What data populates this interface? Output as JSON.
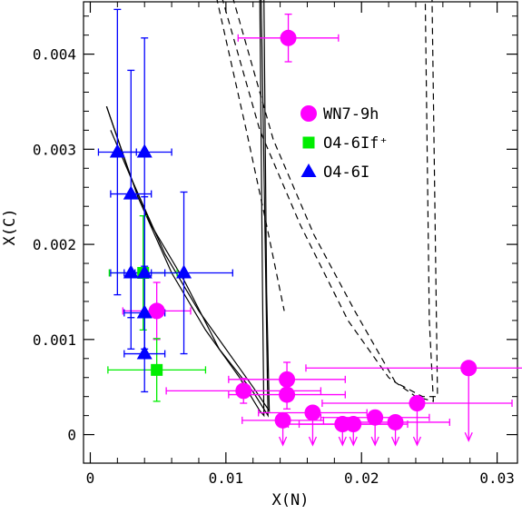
{
  "chart_data": {
    "type": "scatter",
    "title": "",
    "xlabel": "X(N)",
    "ylabel": "X(C)",
    "xlim": [
      -0.0005,
      0.0315
    ],
    "ylim": [
      -0.0003,
      0.00455
    ],
    "x_ticks": [
      0,
      0.01,
      0.02,
      0.03
    ],
    "x_tick_labels": [
      "0",
      "0.01",
      "0.02",
      "0.03"
    ],
    "y_ticks": [
      0,
      0.001,
      0.002,
      0.003,
      0.004
    ],
    "y_tick_labels": [
      "0",
      "0.001",
      "0.002",
      "0.003",
      "0.004"
    ],
    "grid": false,
    "legend_position": "upper-right",
    "series": [
      {
        "name": "WN7-9h",
        "marker": "circle",
        "color": "#ff00ff",
        "points": [
          {
            "x": 0.0146,
            "y": 0.00417,
            "xerr": 0.0037,
            "yerr": 0.00025
          },
          {
            "x": 0.0049,
            "y": 0.0013,
            "xerr": 0.0025,
            "yerr": 0.0003
          },
          {
            "x": 0.0113,
            "y": 0.00046,
            "xerr": 0.0057,
            "yerr": 0.00013
          },
          {
            "x": 0.0145,
            "y": 0.00058,
            "xerr": 0.0043,
            "yerr": 0.00018
          },
          {
            "x": 0.0145,
            "y": 0.00042,
            "xerr": 0.0043,
            "yerr": 0.00015
          },
          {
            "x": 0.0142,
            "y": 0.00015,
            "xerr": 0.003,
            "yerr": 0.0,
            "upper_limit": true
          },
          {
            "x": 0.0164,
            "y": 0.00023,
            "xerr": 0.004,
            "yerr": 0.0,
            "upper_limit": true
          },
          {
            "x": 0.0186,
            "y": 0.00011,
            "xerr": 0.004,
            "yerr": 0.0,
            "upper_limit": true
          },
          {
            "x": 0.0194,
            "y": 0.00011,
            "xerr": 0.004,
            "yerr": 0.0,
            "upper_limit": true
          },
          {
            "x": 0.021,
            "y": 0.00018,
            "xerr": 0.004,
            "yerr": 0.0,
            "upper_limit": true
          },
          {
            "x": 0.0225,
            "y": 0.00013,
            "xerr": 0.004,
            "yerr": 0.0,
            "upper_limit": true
          },
          {
            "x": 0.0241,
            "y": 0.00033,
            "xerr": 0.007,
            "yerr": 0.0,
            "upper_limit": true
          },
          {
            "x": 0.0279,
            "y": 0.0007,
            "xerr": 0.012,
            "yerr": 0.0,
            "upper_limit": true
          }
        ]
      },
      {
        "name": "O4-6If⁺",
        "marker": "square",
        "color": "#00ee00",
        "points": [
          {
            "x": 0.0039,
            "y": 0.0017,
            "xerr": 0.0025,
            "yerr": 0.0006
          },
          {
            "x": 0.0049,
            "y": 0.00068,
            "xerr": 0.0036,
            "yerr": 0.00033
          }
        ]
      },
      {
        "name": "O4-6I",
        "marker": "triangle",
        "color": "#0000ff",
        "points": [
          {
            "x": 0.002,
            "y": 0.00297,
            "xerr": 0.0014,
            "yerr": 0.0015
          },
          {
            "x": 0.004,
            "y": 0.00297,
            "xerr": 0.002,
            "yerr": 0.0012
          },
          {
            "x": 0.003,
            "y": 0.00253,
            "xerr": 0.0015,
            "yerr": 0.0013
          },
          {
            "x": 0.003,
            "y": 0.0017,
            "xerr": 0.0015,
            "yerr": 0.0008
          },
          {
            "x": 0.004,
            "y": 0.0017,
            "xerr": 0.0015,
            "yerr": 0.0008
          },
          {
            "x": 0.0069,
            "y": 0.0017,
            "xerr": 0.0036,
            "yerr": 0.00085
          },
          {
            "x": 0.004,
            "y": 0.00128,
            "xerr": 0.0015,
            "yerr": 0.00045
          },
          {
            "x": 0.004,
            "y": 0.00085,
            "xerr": 0.0015,
            "yerr": 0.0004
          }
        ]
      }
    ],
    "tracks": [
      {
        "style": "solid",
        "points": [
          [
            0.0012,
            0.00345
          ],
          [
            0.0035,
            0.0025
          ],
          [
            0.006,
            0.0017
          ],
          [
            0.0085,
            0.0011
          ],
          [
            0.011,
            0.0006
          ],
          [
            0.0125,
            0.00025
          ],
          [
            0.0128,
            0.0002
          ],
          [
            0.0127,
            0.0015
          ],
          [
            0.0125,
            0.0046
          ]
        ]
      },
      {
        "style": "solid",
        "points": [
          [
            0.0012,
            0.00345
          ],
          [
            0.003,
            0.0027
          ],
          [
            0.0055,
            0.0019
          ],
          [
            0.008,
            0.0013
          ],
          [
            0.0105,
            0.0008
          ],
          [
            0.012,
            0.0005
          ],
          [
            0.0132,
            0.00025
          ],
          [
            0.013,
            0.0015
          ],
          [
            0.0128,
            0.0046
          ]
        ]
      },
      {
        "style": "solid",
        "points": [
          [
            0.0015,
            0.0032
          ],
          [
            0.0045,
            0.0022
          ],
          [
            0.007,
            0.0016
          ],
          [
            0.0095,
            0.0009
          ],
          [
            0.012,
            0.00045
          ],
          [
            0.0131,
            0.0002
          ],
          [
            0.0126,
            0.0046
          ]
        ]
      },
      {
        "style": "dashed",
        "points": [
          [
            0.0093,
            0.0046
          ],
          [
            0.0115,
            0.0032
          ],
          [
            0.013,
            0.0022
          ],
          [
            0.0143,
            0.0013
          ]
        ]
      },
      {
        "style": "dashed",
        "points": [
          [
            0.0097,
            0.0046
          ],
          [
            0.0125,
            0.0032
          ],
          [
            0.0155,
            0.0022
          ],
          [
            0.019,
            0.0012
          ],
          [
            0.022,
            0.0006
          ],
          [
            0.024,
            0.0004
          ],
          [
            0.0253,
            0.00035
          ],
          [
            0.025,
            0.0012
          ],
          [
            0.0247,
            0.0046
          ]
        ]
      },
      {
        "style": "dashed",
        "points": [
          [
            0.0105,
            0.0046
          ],
          [
            0.0135,
            0.0031
          ],
          [
            0.0165,
            0.0021
          ],
          [
            0.0195,
            0.0013
          ],
          [
            0.0225,
            0.00055
          ],
          [
            0.0245,
            0.0004
          ],
          [
            0.0256,
            0.0004
          ],
          [
            0.0252,
            0.0046
          ]
        ]
      }
    ]
  }
}
